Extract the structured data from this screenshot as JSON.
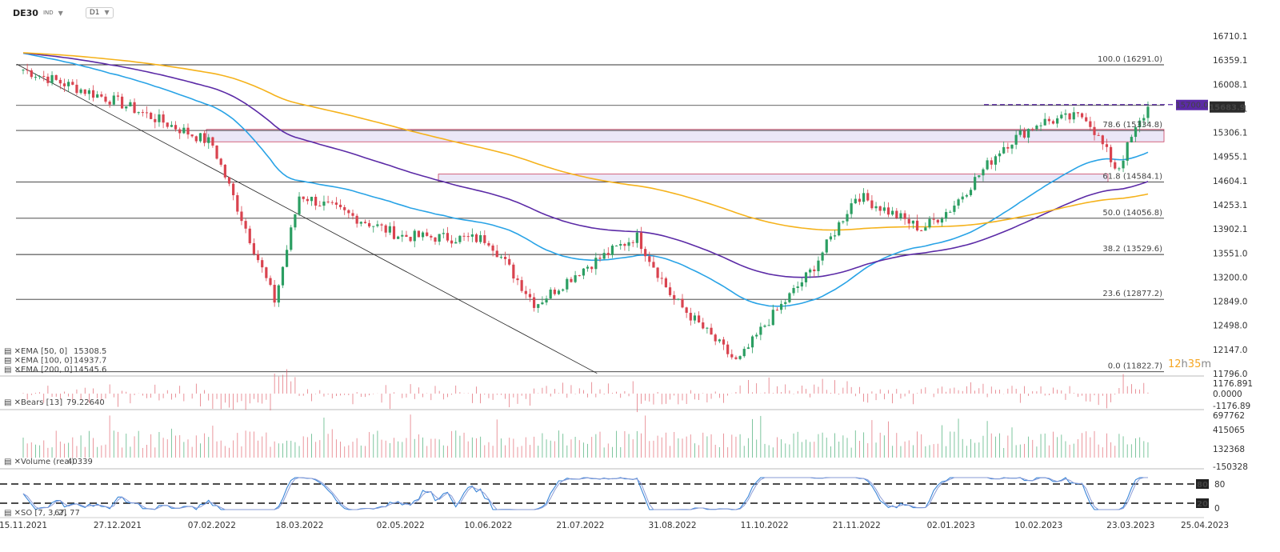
{
  "header": {
    "symbol": "DE30",
    "instrument_type": "IND",
    "timeframe": "D1"
  },
  "countdown": {
    "hours": "12",
    "h": "h",
    "minutes": "35",
    "m": "m"
  },
  "colors": {
    "ema50": "#29a3e6",
    "ema100": "#5b2aa6",
    "ema200": "#f5b21b",
    "bull": "#2b9e62",
    "bear": "#d9434f",
    "fib": "#333333",
    "zone": "#c94060",
    "price_tag": "#5b2aa6"
  },
  "chart_data": {
    "type": "candlestick",
    "title": "",
    "price_axis_ticks": [
      "16710.1",
      "16359.1",
      "16008.1",
      "15657.1",
      "15306.1",
      "14955.1",
      "14604.1",
      "14253.1",
      "13902.1",
      "13551.0",
      "13200.0",
      "12849.0",
      "12498.0",
      "12147.0",
      "11796.0"
    ],
    "date_axis_ticks": [
      "15.11.2021",
      "27.12.2021",
      "07.02.2022",
      "18.03.2022",
      "02.05.2022",
      "10.06.2022",
      "21.07.2022",
      "31.08.2022",
      "11.10.2022",
      "21.11.2022",
      "02.01.2023",
      "10.02.2023",
      "23.03.2023",
      "25.04.2023"
    ],
    "fibonacci": [
      {
        "label": "100.0 (16291.0)",
        "value": 16291.0
      },
      {
        "label": "78.6 (15334.8)",
        "value": 15334.8
      },
      {
        "label": "61.8 (14584.1)",
        "value": 14584.1
      },
      {
        "label": "50.0 (14056.8)",
        "value": 14056.8
      },
      {
        "label": "38.2 (13529.6)",
        "value": 13529.6
      },
      {
        "label": "23.6 (12877.2)",
        "value": 12877.2
      },
      {
        "label": "0.0 (11822.7)",
        "value": 11822.7
      }
    ],
    "horizontal_line": {
      "label": "15700.0",
      "value": 15700.0
    },
    "last_price": {
      "label": "15683.9",
      "value": 15683.9
    },
    "zones": [
      {
        "from": 15170,
        "to": 15350
      },
      {
        "from": 14584,
        "to": 14700
      }
    ],
    "trendline": {
      "from": {
        "date": "15.11.2021",
        "value": 16300
      },
      "to": {
        "date": "27.09.2022",
        "value": 11822.7
      }
    },
    "candles": [
      {
        "date": "15.11.2021",
        "close": 16220
      },
      {
        "date": "27.12.2021",
        "close": 15750
      },
      {
        "date": "07.02.2022",
        "close": 15150
      },
      {
        "date": "07.03.2022",
        "close": 12850
      },
      {
        "date": "18.03.2022",
        "close": 14400
      },
      {
        "date": "02.05.2022",
        "close": 13800
      },
      {
        "date": "10.06.2022",
        "close": 13750
      },
      {
        "date": "01.07.2022",
        "close": 12800
      },
      {
        "date": "21.07.2022",
        "close": 13300
      },
      {
        "date": "15.08.2022",
        "close": 13800
      },
      {
        "date": "31.08.2022",
        "close": 12900
      },
      {
        "date": "29.09.2022",
        "close": 11950
      },
      {
        "date": "11.10.2022",
        "close": 12500
      },
      {
        "date": "01.11.2022",
        "close": 13300
      },
      {
        "date": "21.11.2022",
        "close": 14400
      },
      {
        "date": "20.12.2022",
        "close": 13900
      },
      {
        "date": "02.01.2023",
        "close": 14200
      },
      {
        "date": "25.01.2023",
        "close": 15100
      },
      {
        "date": "10.02.2023",
        "close": 15450
      },
      {
        "date": "03.03.2023",
        "close": 15550
      },
      {
        "date": "17.03.2023",
        "close": 14750
      },
      {
        "date": "23.03.2023",
        "close": 15200
      },
      {
        "date": "31.03.2023",
        "close": 15683.9
      }
    ],
    "indicators": [
      {
        "label": "EMA [50, 0]",
        "value": "15308.5"
      },
      {
        "label": "EMA [100, 0]",
        "value": "14937.7"
      },
      {
        "label": "EMA [200, 0]",
        "value": "14545.6"
      }
    ],
    "bears": {
      "label": "Bears [13]",
      "value": "79.22640",
      "ticks": [
        "1176.891",
        "0.0000",
        "-1176.89"
      ]
    },
    "volume": {
      "label": "Volume (real)",
      "value": "40339",
      "ticks": [
        "697762",
        "415065",
        "132368",
        "-150328"
      ]
    },
    "stochastic": {
      "label": "SO [7, 3, 2]",
      "value": "67, 77",
      "levels": [
        "80",
        "20"
      ],
      "ticks": [
        "80",
        "0"
      ]
    }
  }
}
